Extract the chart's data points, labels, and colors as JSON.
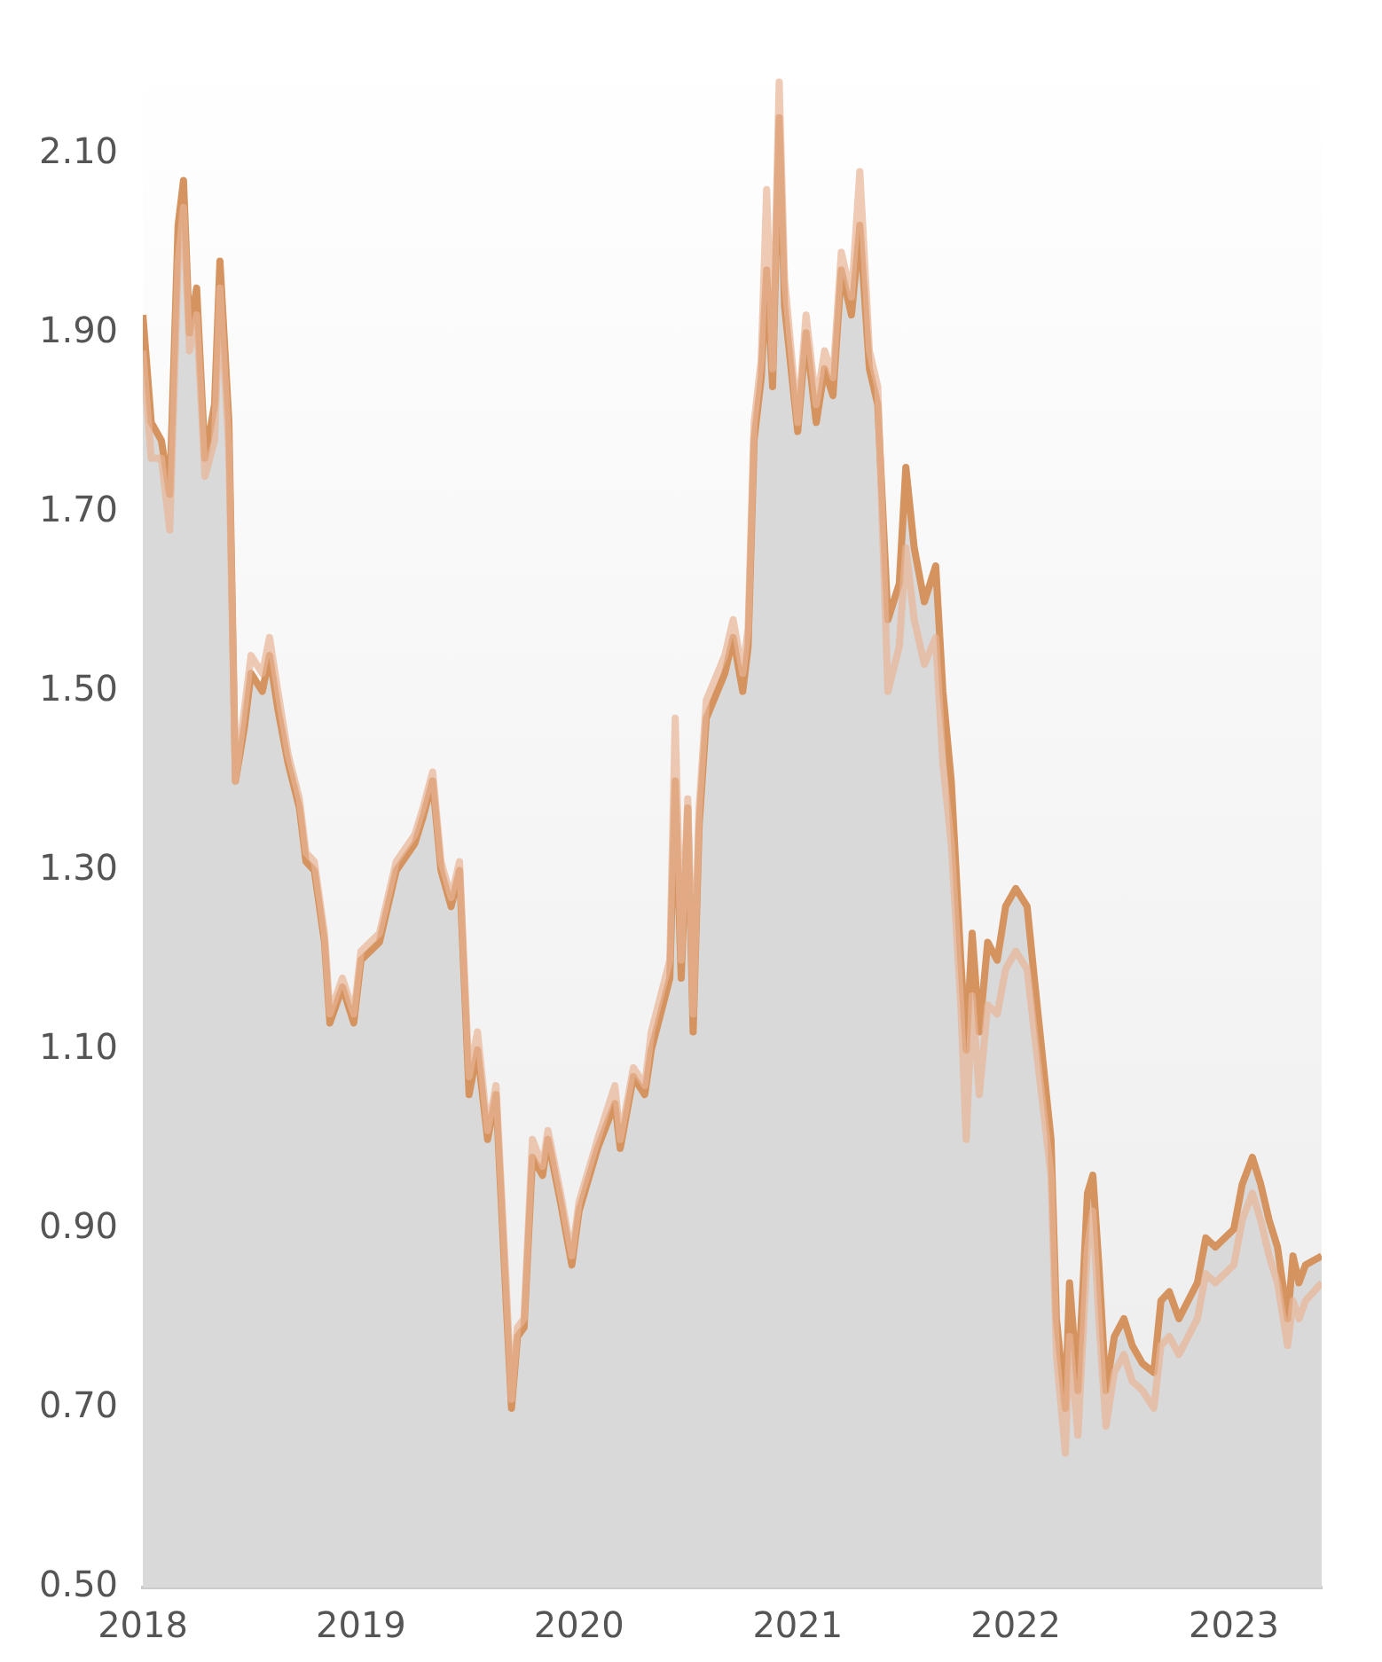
{
  "chart_data": {
    "type": "area",
    "x": [
      "2018-01-01",
      "2018-01-15",
      "2018-02-01",
      "2018-02-15",
      "2018-03-01",
      "2018-03-10",
      "2018-03-20",
      "2018-04-01",
      "2018-04-15",
      "2018-05-01",
      "2018-05-10",
      "2018-05-25",
      "2018-06-05",
      "2018-06-20",
      "2018-07-01",
      "2018-07-20",
      "2018-08-01",
      "2018-08-15",
      "2018-09-01",
      "2018-09-20",
      "2018-10-01",
      "2018-10-15",
      "2018-11-01",
      "2018-11-10",
      "2018-12-01",
      "2018-12-20",
      "2019-01-01",
      "2019-02-01",
      "2019-03-01",
      "2019-04-01",
      "2019-04-15",
      "2019-05-01",
      "2019-05-15",
      "2019-06-01",
      "2019-06-15",
      "2019-07-01",
      "2019-07-15",
      "2019-08-01",
      "2019-08-15",
      "2019-09-01",
      "2019-09-10",
      "2019-09-20",
      "2019-10-01",
      "2019-10-15",
      "2019-11-01",
      "2019-11-10",
      "2019-12-01",
      "2019-12-20",
      "2020-01-01",
      "2020-02-01",
      "2020-03-01",
      "2020-03-10",
      "2020-04-01",
      "2020-04-20",
      "2020-05-01",
      "2020-06-01",
      "2020-06-10",
      "2020-06-20",
      "2020-07-01",
      "2020-07-10",
      "2020-07-20",
      "2020-08-01",
      "2020-09-01",
      "2020-09-15",
      "2020-10-01",
      "2020-10-10",
      "2020-10-20",
      "2020-11-01",
      "2020-11-10",
      "2020-11-20",
      "2020-12-01",
      "2020-12-10",
      "2021-01-01",
      "2021-01-15",
      "2021-02-01",
      "2021-02-15",
      "2021-03-01",
      "2021-03-15",
      "2021-04-01",
      "2021-04-15",
      "2021-05-01",
      "2021-05-15",
      "2021-06-01",
      "2021-06-20",
      "2021-07-01",
      "2021-07-15",
      "2021-08-01",
      "2021-08-20",
      "2021-09-01",
      "2021-09-15",
      "2021-10-01",
      "2021-10-10",
      "2021-10-20",
      "2021-11-01",
      "2021-11-15",
      "2021-12-01",
      "2021-12-15",
      "2022-01-01",
      "2022-01-20",
      "2022-02-01",
      "2022-03-01",
      "2022-03-10",
      "2022-03-25",
      "2022-04-01",
      "2022-04-15",
      "2022-05-01",
      "2022-05-10",
      "2022-05-20",
      "2022-06-01",
      "2022-06-15",
      "2022-07-01",
      "2022-07-15",
      "2022-08-01",
      "2022-08-20",
      "2022-09-01",
      "2022-09-15",
      "2022-10-01",
      "2022-11-01",
      "2022-11-15",
      "2022-12-01",
      "2023-01-01",
      "2023-01-15",
      "2023-02-01",
      "2023-02-15",
      "2023-03-01",
      "2023-03-15",
      "2023-04-01",
      "2023-04-10",
      "2023-04-20",
      "2023-05-01",
      "2023-05-28"
    ],
    "series": [
      {
        "type": "line",
        "color": "#e8b494",
        "values": [
          1.88,
          1.76,
          1.76,
          1.68,
          1.98,
          2.04,
          1.88,
          1.92,
          1.74,
          1.78,
          1.95,
          1.77,
          1.4,
          1.48,
          1.54,
          1.52,
          1.56,
          1.5,
          1.43,
          1.38,
          1.32,
          1.31,
          1.23,
          1.14,
          1.18,
          1.14,
          1.21,
          1.23,
          1.31,
          1.34,
          1.37,
          1.41,
          1.31,
          1.27,
          1.31,
          1.07,
          1.12,
          1.01,
          1.06,
          0.84,
          0.71,
          0.79,
          0.8,
          1.0,
          0.97,
          1.01,
          0.94,
          0.87,
          0.93,
          1.0,
          1.06,
          1.0,
          1.08,
          1.06,
          1.12,
          1.2,
          1.47,
          1.2,
          1.38,
          1.14,
          1.37,
          1.49,
          1.54,
          1.58,
          1.52,
          1.57,
          1.8,
          1.87,
          2.06,
          1.86,
          2.18,
          1.96,
          1.8,
          1.92,
          1.82,
          1.88,
          1.85,
          1.99,
          1.94,
          2.08,
          1.88,
          1.84,
          1.5,
          1.55,
          1.66,
          1.58,
          1.53,
          1.56,
          1.42,
          1.33,
          1.15,
          1.0,
          1.16,
          1.05,
          1.15,
          1.14,
          1.19,
          1.21,
          1.19,
          1.12,
          0.96,
          0.76,
          0.65,
          0.78,
          0.67,
          0.88,
          0.92,
          0.8,
          0.68,
          0.74,
          0.76,
          0.73,
          0.72,
          0.7,
          0.77,
          0.78,
          0.76,
          0.8,
          0.85,
          0.84,
          0.86,
          0.91,
          0.94,
          0.91,
          0.87,
          0.84,
          0.77,
          0.82,
          0.8,
          0.82,
          0.84
        ]
      },
      {
        "color": "#d4935f",
        "values": [
          1.92,
          1.8,
          1.78,
          1.72,
          2.02,
          2.07,
          1.9,
          1.95,
          1.76,
          1.82,
          1.98,
          1.8,
          1.4,
          1.46,
          1.52,
          1.5,
          1.54,
          1.48,
          1.42,
          1.37,
          1.31,
          1.3,
          1.22,
          1.13,
          1.17,
          1.13,
          1.2,
          1.22,
          1.3,
          1.33,
          1.36,
          1.4,
          1.3,
          1.26,
          1.3,
          1.05,
          1.1,
          1.0,
          1.05,
          0.82,
          0.7,
          0.78,
          0.79,
          0.98,
          0.96,
          1.0,
          0.93,
          0.86,
          0.92,
          0.99,
          1.04,
          0.99,
          1.07,
          1.05,
          1.1,
          1.18,
          1.4,
          1.18,
          1.37,
          1.12,
          1.35,
          1.47,
          1.52,
          1.56,
          1.5,
          1.55,
          1.78,
          1.85,
          1.97,
          1.84,
          2.14,
          1.93,
          1.79,
          1.9,
          1.8,
          1.86,
          1.83,
          1.97,
          1.92,
          2.02,
          1.86,
          1.82,
          1.58,
          1.62,
          1.75,
          1.66,
          1.6,
          1.64,
          1.5,
          1.4,
          1.2,
          1.1,
          1.23,
          1.12,
          1.22,
          1.2,
          1.26,
          1.28,
          1.26,
          1.18,
          1.0,
          0.8,
          0.7,
          0.84,
          0.72,
          0.94,
          0.96,
          0.86,
          0.72,
          0.78,
          0.8,
          0.77,
          0.75,
          0.74,
          0.82,
          0.83,
          0.8,
          0.84,
          0.89,
          0.88,
          0.9,
          0.95,
          0.98,
          0.95,
          0.91,
          0.88,
          0.8,
          0.87,
          0.84,
          0.86,
          0.87
        ]
      }
    ],
    "xlim": [
      "2018-01-01",
      "2023-05-28"
    ],
    "xticks": [
      "2018",
      "2019",
      "2020",
      "2021",
      "2022",
      "2023"
    ],
    "ylim": [
      0.5,
      2.22
    ],
    "yticks": [
      {
        "value": 0.5,
        "label": "0.50"
      },
      {
        "value": 0.7,
        "label": "0.70"
      },
      {
        "value": 0.9,
        "label": "0.90"
      },
      {
        "value": 1.1,
        "label": "1.10"
      },
      {
        "value": 1.3,
        "label": "1.30"
      },
      {
        "value": 1.5,
        "label": "1.50"
      },
      {
        "value": 1.7,
        "label": "1.70"
      },
      {
        "value": 1.9,
        "label": "1.90"
      },
      {
        "value": 2.1,
        "label": "2.10"
      }
    ],
    "grid": false,
    "legend": false,
    "marker": "none",
    "line_style": "solid"
  }
}
